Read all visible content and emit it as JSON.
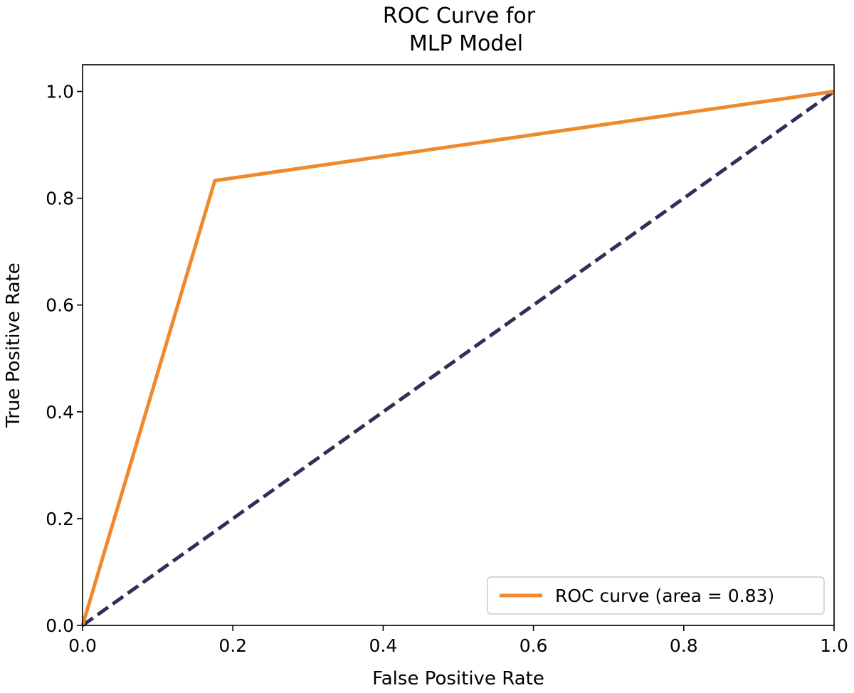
{
  "chart_data": {
    "type": "line",
    "title": [
      "ROC Curve for",
      "MLP Model"
    ],
    "xlabel": "False Positive Rate",
    "ylabel": "True Positive Rate",
    "xlim": [
      0.0,
      1.0
    ],
    "ylim": [
      0.0,
      1.05
    ],
    "xticks": [
      "0.0",
      "0.2",
      "0.4",
      "0.6",
      "0.8",
      "1.0"
    ],
    "yticks": [
      "0.0",
      "0.2",
      "0.4",
      "0.6",
      "0.8",
      "1.0"
    ],
    "grid": false,
    "legend_position": "lower-right",
    "series": [
      {
        "name": "ROC curve (area = 0.83)",
        "style": "solid",
        "color": "#f0892d",
        "x": [
          0.0,
          0.176,
          1.0
        ],
        "y": [
          0.0,
          0.833,
          1.0
        ]
      },
      {
        "style": "dashed",
        "color": "#2f2f5a",
        "x": [
          0.0,
          1.0
        ],
        "y": [
          0.0,
          1.0
        ]
      }
    ]
  }
}
